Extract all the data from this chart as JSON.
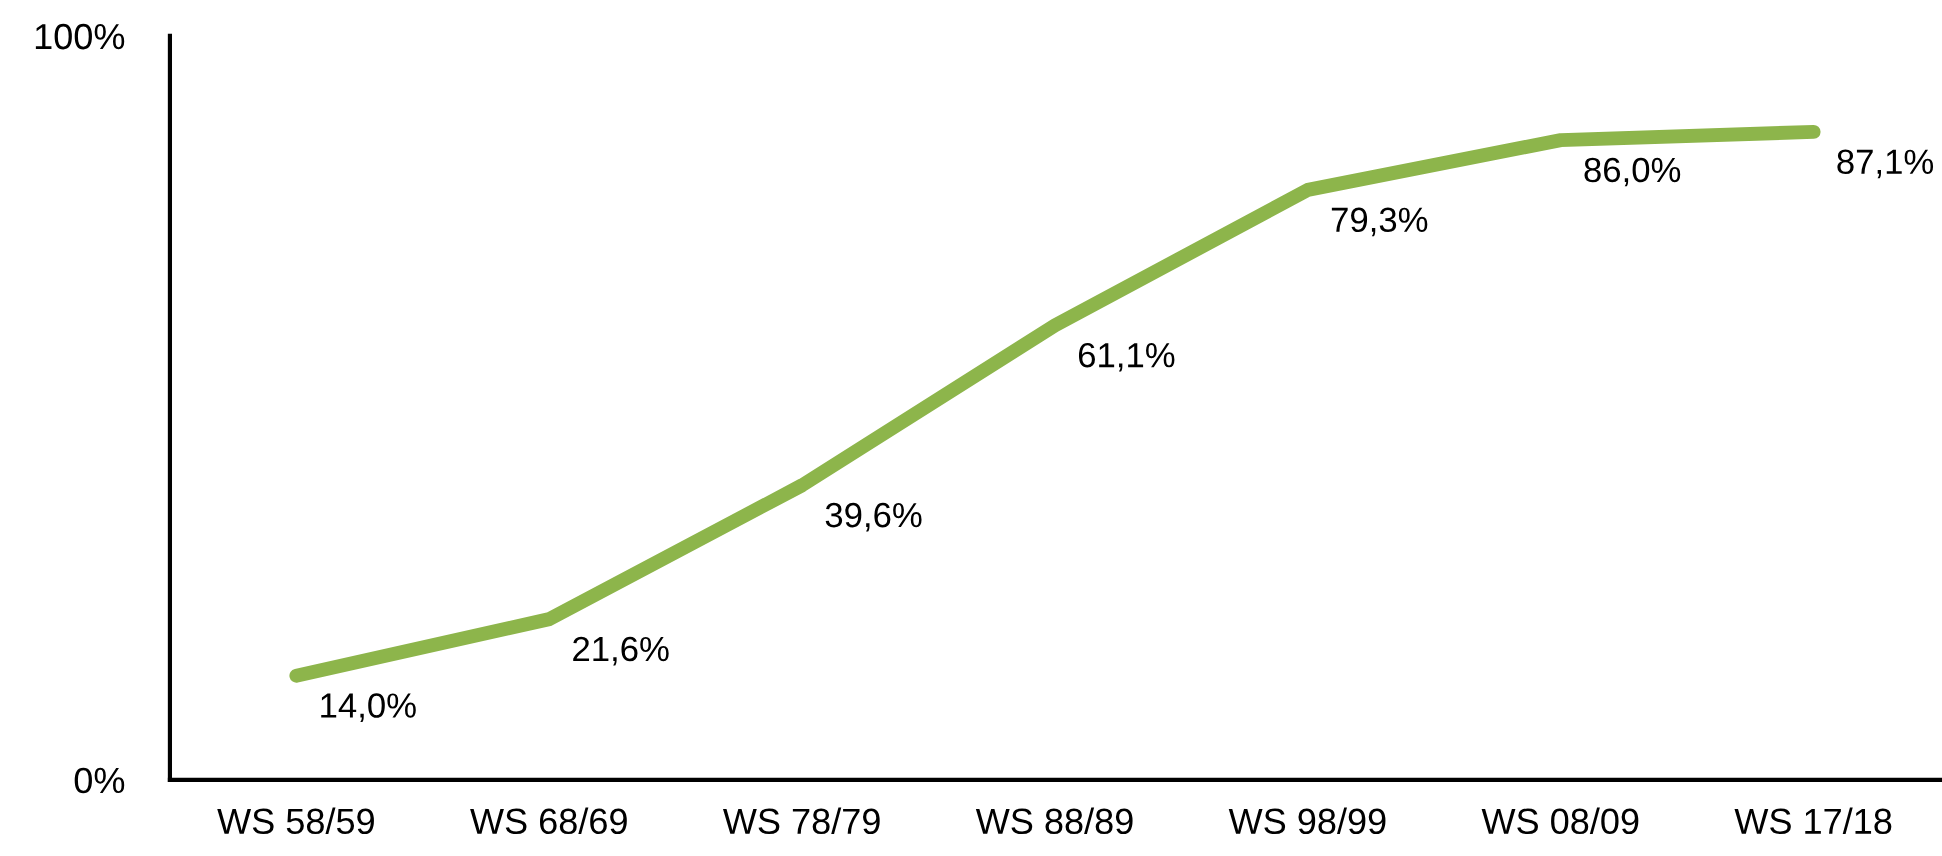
{
  "chart_data": {
    "type": "line",
    "categories": [
      "WS 58/59",
      "WS 68/69",
      "WS 78/79",
      "WS 88/89",
      "WS 98/99",
      "WS 08/09",
      "WS 17/18"
    ],
    "series": [
      {
        "color": "#8db54b",
        "values": [
          14.0,
          21.6,
          39.6,
          61.1,
          79.3,
          86.0,
          87.1
        ],
        "value_labels": [
          "14,0%",
          "21,6%",
          "39,6%",
          "61,1%",
          "79,3%",
          "86,0%",
          "87,1%"
        ]
      }
    ],
    "ylim": [
      0,
      100
    ],
    "yticks": [
      {
        "value": 0,
        "label": "0%"
      },
      {
        "value": 100,
        "label": "100%"
      }
    ],
    "grid": false,
    "legend": false,
    "marker": "none",
    "line_style": "solid"
  }
}
